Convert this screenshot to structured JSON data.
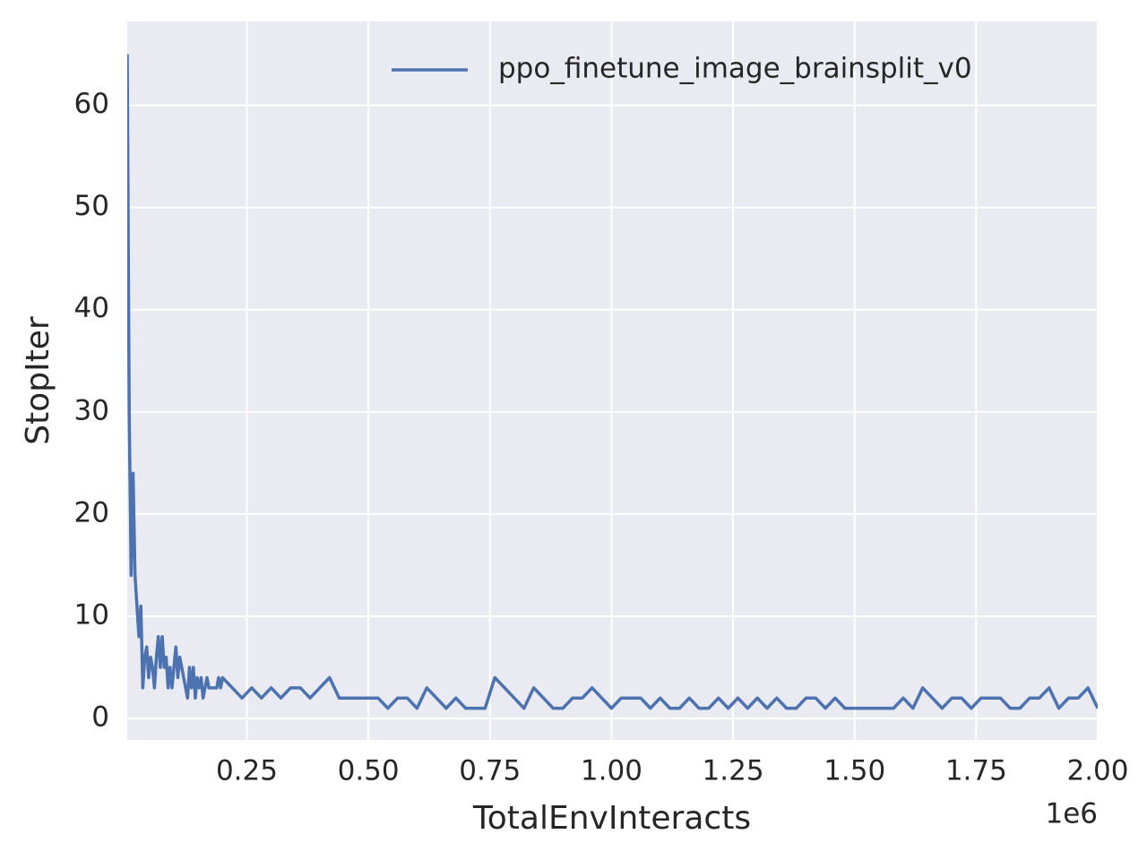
{
  "chart_data": {
    "type": "line",
    "x_label": "TotalEnvInteracts",
    "y_label": "StopIter",
    "x_offset_label": "1e6",
    "x": [
      4000,
      8000,
      12000,
      16000,
      20000,
      24000,
      28000,
      32000,
      36000,
      40000,
      44000,
      48000,
      52000,
      56000,
      60000,
      64000,
      68000,
      72000,
      76000,
      80000,
      84000,
      88000,
      92000,
      96000,
      100000,
      104000,
      108000,
      112000,
      116000,
      120000,
      124000,
      128000,
      132000,
      136000,
      140000,
      144000,
      148000,
      152000,
      156000,
      160000,
      164000,
      168000,
      172000,
      176000,
      180000,
      184000,
      188000,
      192000,
      196000,
      200000,
      220000,
      240000,
      260000,
      280000,
      300000,
      320000,
      340000,
      360000,
      380000,
      400000,
      420000,
      440000,
      460000,
      480000,
      500000,
      520000,
      540000,
      560000,
      580000,
      600000,
      620000,
      640000,
      660000,
      680000,
      700000,
      720000,
      740000,
      760000,
      780000,
      800000,
      820000,
      840000,
      860000,
      880000,
      900000,
      920000,
      940000,
      960000,
      980000,
      1000000,
      1020000,
      1040000,
      1060000,
      1080000,
      1100000,
      1120000,
      1140000,
      1160000,
      1180000,
      1200000,
      1220000,
      1240000,
      1260000,
      1280000,
      1300000,
      1320000,
      1340000,
      1360000,
      1380000,
      1400000,
      1420000,
      1440000,
      1460000,
      1480000,
      1500000,
      1520000,
      1540000,
      1560000,
      1580000,
      1600000,
      1620000,
      1640000,
      1660000,
      1680000,
      1700000,
      1720000,
      1740000,
      1760000,
      1780000,
      1800000,
      1820000,
      1840000,
      1860000,
      1880000,
      1900000,
      1920000,
      1940000,
      1960000,
      1980000,
      2000000
    ],
    "series": [
      {
        "name": "ppo_finetune_image_brainsplit_v0",
        "color": "#4c72b0",
        "values": [
          65,
          30,
          14,
          24,
          14,
          11,
          8,
          11,
          3,
          6,
          7,
          4,
          6,
          5,
          3,
          6,
          8,
          5,
          8,
          5,
          6,
          3,
          5,
          3,
          5,
          7,
          4,
          6,
          5,
          4,
          3,
          2,
          5,
          3,
          5,
          2,
          4,
          3,
          4,
          2,
          3,
          4,
          3,
          3,
          3,
          3,
          3,
          4,
          3,
          4,
          3,
          2,
          3,
          2,
          3,
          2,
          3,
          3,
          2,
          3,
          4,
          2,
          2,
          2,
          2,
          2,
          1,
          2,
          2,
          1,
          3,
          2,
          1,
          2,
          1,
          1,
          1,
          4,
          3,
          2,
          1,
          3,
          2,
          1,
          1,
          2,
          2,
          3,
          2,
          1,
          2,
          2,
          2,
          1,
          2,
          1,
          1,
          2,
          1,
          1,
          2,
          1,
          2,
          1,
          2,
          1,
          2,
          1,
          1,
          2,
          2,
          1,
          2,
          1,
          1,
          1,
          1,
          1,
          1,
          2,
          1,
          3,
          2,
          1,
          2,
          2,
          1,
          2,
          2,
          2,
          1,
          1,
          2,
          2,
          3,
          1,
          2,
          2,
          3,
          1
        ]
      }
    ],
    "xlim": [
      4000,
      2000000
    ],
    "xticks": [
      {
        "value": 250000,
        "label": "0.25"
      },
      {
        "value": 500000,
        "label": "0.50"
      },
      {
        "value": 750000,
        "label": "0.75"
      },
      {
        "value": 1000000,
        "label": "1.00"
      },
      {
        "value": 1250000,
        "label": "1.25"
      },
      {
        "value": 1500000,
        "label": "1.50"
      },
      {
        "value": 1750000,
        "label": "1.75"
      },
      {
        "value": 2000000,
        "label": "2.00"
      }
    ],
    "ylim": [
      -2.1,
      68.2
    ],
    "yticks": [
      0,
      10,
      20,
      30,
      40,
      50,
      60
    ],
    "grid": true,
    "legend": "upper right",
    "background": "#eaeaf2"
  }
}
